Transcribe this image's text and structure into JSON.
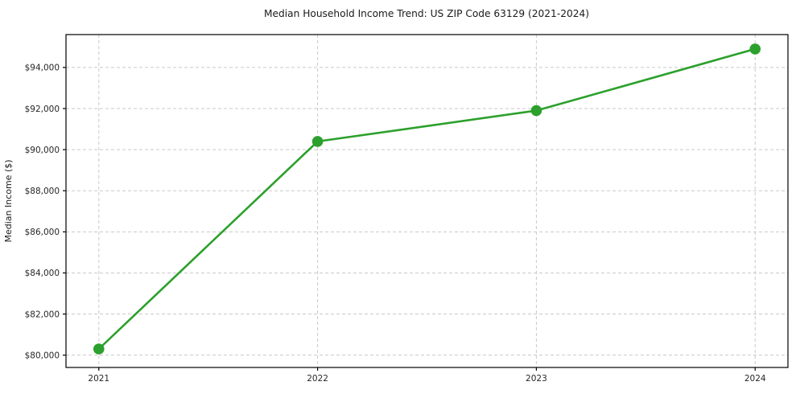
{
  "chart_data": {
    "type": "line",
    "title": "Median Household Income Trend: US ZIP Code 63129 (2021-2024)",
    "xlabel": "",
    "ylabel": "Median Income ($)",
    "categories": [
      "2021",
      "2022",
      "2023",
      "2024"
    ],
    "series": [
      {
        "name": "Median Household Income",
        "values": [
          80300,
          90400,
          91900,
          94900
        ]
      }
    ],
    "yticks": [
      80000,
      82000,
      84000,
      86000,
      88000,
      90000,
      92000,
      94000
    ],
    "ytick_labels": [
      "$80,000",
      "$82,000",
      "$84,000",
      "$86,000",
      "$88,000",
      "$90,000",
      "$92,000",
      "$94,000"
    ],
    "ylim": [
      79400,
      95600
    ],
    "xlim_index": [
      -0.15,
      3.15
    ],
    "grid": "dashed-both-axes",
    "legend": "none",
    "marker": "circle",
    "colors": {
      "line": "#2ca02c",
      "marker": "#2ca02c",
      "grid": "#c9c9c9",
      "axis": "#000000",
      "text": "#1a1a1a",
      "background": "#ffffff"
    }
  }
}
